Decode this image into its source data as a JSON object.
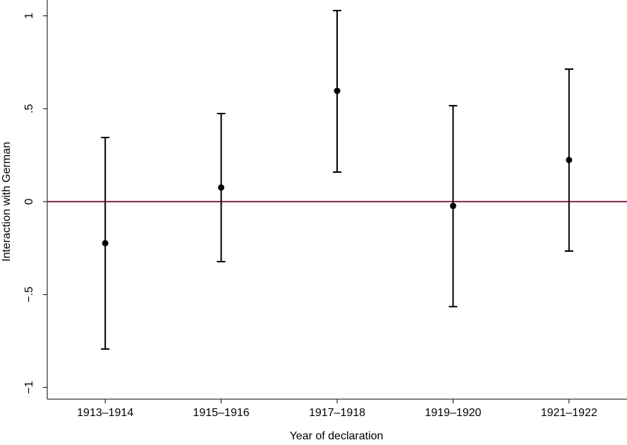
{
  "chart_data": {
    "type": "errorbar",
    "x_label": "Year of declaration",
    "y_label": "Interaction with German",
    "categories": [
      "1913–1914",
      "1915–1916",
      "1917–1918",
      "1919–1920",
      "1921–1922"
    ],
    "values": [
      -0.224,
      0.076,
      0.596,
      -0.023,
      0.224
    ],
    "lower": [
      -0.793,
      -0.323,
      0.159,
      -0.565,
      -0.266
    ],
    "upper": [
      0.345,
      0.474,
      1.028,
      0.516,
      0.713
    ],
    "color": "#000000",
    "ylim": [
      -1.063,
      1.085
    ],
    "yticks": [
      {
        "value": -1,
        "label": "−1"
      },
      {
        "value": -0.5,
        "label": "−.5"
      },
      0,
      {
        "value": 0.5,
        "label": ".5"
      },
      1
    ],
    "reference_line": 0,
    "reference_color": "#8b2252"
  }
}
